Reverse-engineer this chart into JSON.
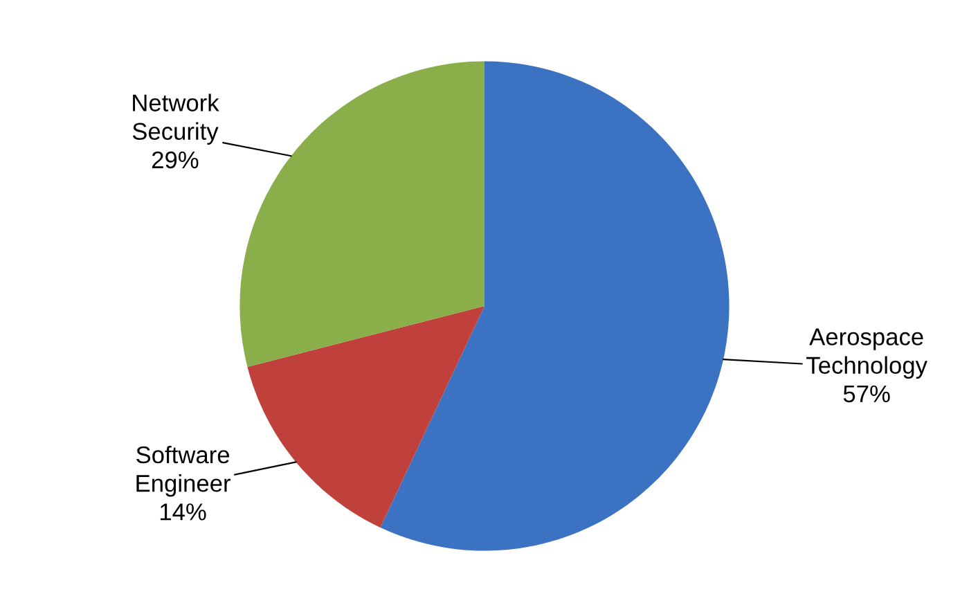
{
  "chart_data": {
    "type": "pie",
    "categories": [
      "Aerospace Technology",
      "Software Engineer",
      "Network Security"
    ],
    "values": [
      57,
      14,
      29
    ],
    "colors": [
      "#3b72c2",
      "#c0403c",
      "#8aae4a"
    ],
    "value_labels": [
      "57%",
      "14%",
      "29%"
    ]
  }
}
